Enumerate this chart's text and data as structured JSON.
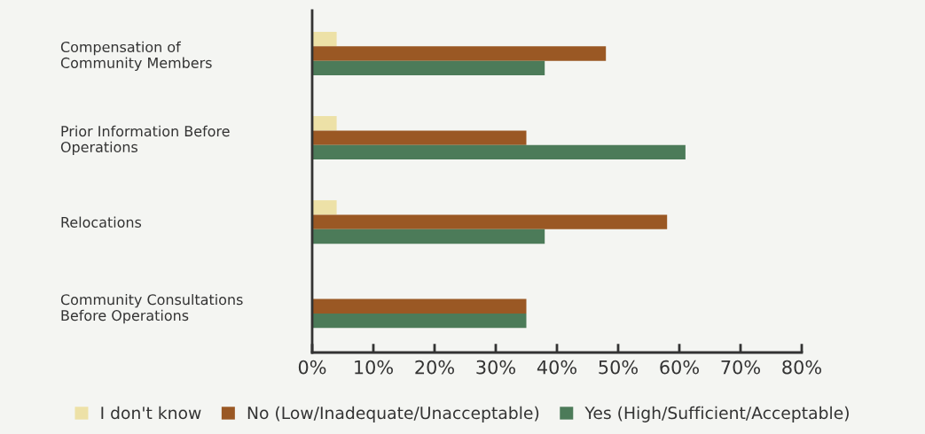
{
  "chart_data": {
    "type": "bar",
    "orientation": "horizontal",
    "categories": [
      "Compensation of\nCommunity Members",
      "Prior Information Before\nOperations",
      "Relocations",
      "Community Consultations\nBefore Operations"
    ],
    "series": [
      {
        "name": "I don't know",
        "color": "#ede1a7",
        "values": [
          4,
          4,
          4,
          null
        ]
      },
      {
        "name": "No (Low/Inadequate/Unacceptable)",
        "color": "#9a5824",
        "values": [
          48,
          35,
          58,
          35
        ]
      },
      {
        "name": "Yes (High/Sufficient/Acceptable)",
        "color": "#4c7b59",
        "values": [
          38,
          61,
          38,
          35
        ]
      }
    ],
    "xlim": [
      0,
      80
    ],
    "xticks": [
      {
        "value": 0,
        "label": "0%"
      },
      {
        "value": 10,
        "label": "10%"
      },
      {
        "value": 20,
        "label": "20%"
      },
      {
        "value": 30,
        "label": "30%"
      },
      {
        "value": 40,
        "label": "40%"
      },
      {
        "value": 50,
        "label": "50%"
      },
      {
        "value": 60,
        "label": "60%"
      },
      {
        "value": 70,
        "label": "70%"
      },
      {
        "value": 80,
        "label": "80%"
      }
    ],
    "grid": false,
    "legend": "bottom"
  }
}
